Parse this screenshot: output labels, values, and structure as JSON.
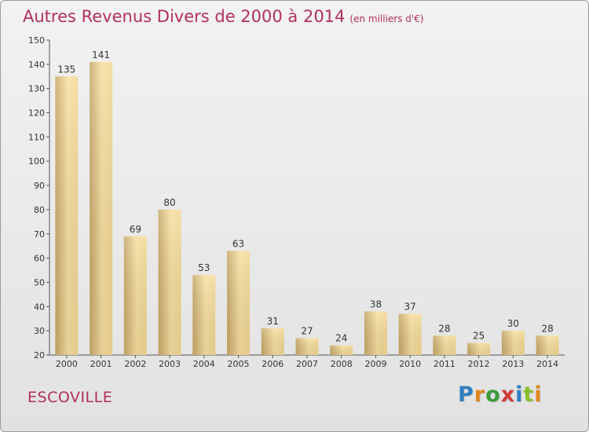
{
  "title": "Autres Revenus Divers de 2000 à 2014",
  "subtitle": "(en milliers d'€)",
  "commune": "ESCOVILLE",
  "logo": {
    "text": "Proxiti",
    "letters": [
      {
        "ch": "P",
        "color": "#2f7fc1"
      },
      {
        "ch": "r",
        "color": "#e0861a"
      },
      {
        "ch": "o",
        "color": "#3a9a3a"
      },
      {
        "ch": "x",
        "color": "#d03a3a"
      },
      {
        "ch": "i",
        "color": "#2f7fc1"
      },
      {
        "ch": "t",
        "color": "#8abf2a"
      },
      {
        "ch": "i",
        "color": "#e0861a"
      }
    ]
  },
  "colors": {
    "accent": "#b0305e",
    "bar_light": "#f6dfa0",
    "bar_dark": "#c7a868"
  },
  "chart_data": {
    "type": "bar",
    "title": "Autres Revenus Divers de 2000 à 2014",
    "subtitle": "(en milliers d'€)",
    "xlabel": "",
    "ylabel": "",
    "categories": [
      "2000",
      "2001",
      "2002",
      "2003",
      "2004",
      "2005",
      "2006",
      "2007",
      "2008",
      "2009",
      "2010",
      "2011",
      "2012",
      "2013",
      "2014"
    ],
    "values": [
      135,
      141,
      69,
      80,
      53,
      63,
      31,
      27,
      24,
      38,
      37,
      28,
      25,
      30,
      28
    ],
    "ylim": [
      20,
      150
    ],
    "yticks": [
      20,
      30,
      40,
      50,
      60,
      70,
      80,
      90,
      100,
      110,
      120,
      130,
      140,
      150
    ],
    "grid": false,
    "data_labels": true
  }
}
